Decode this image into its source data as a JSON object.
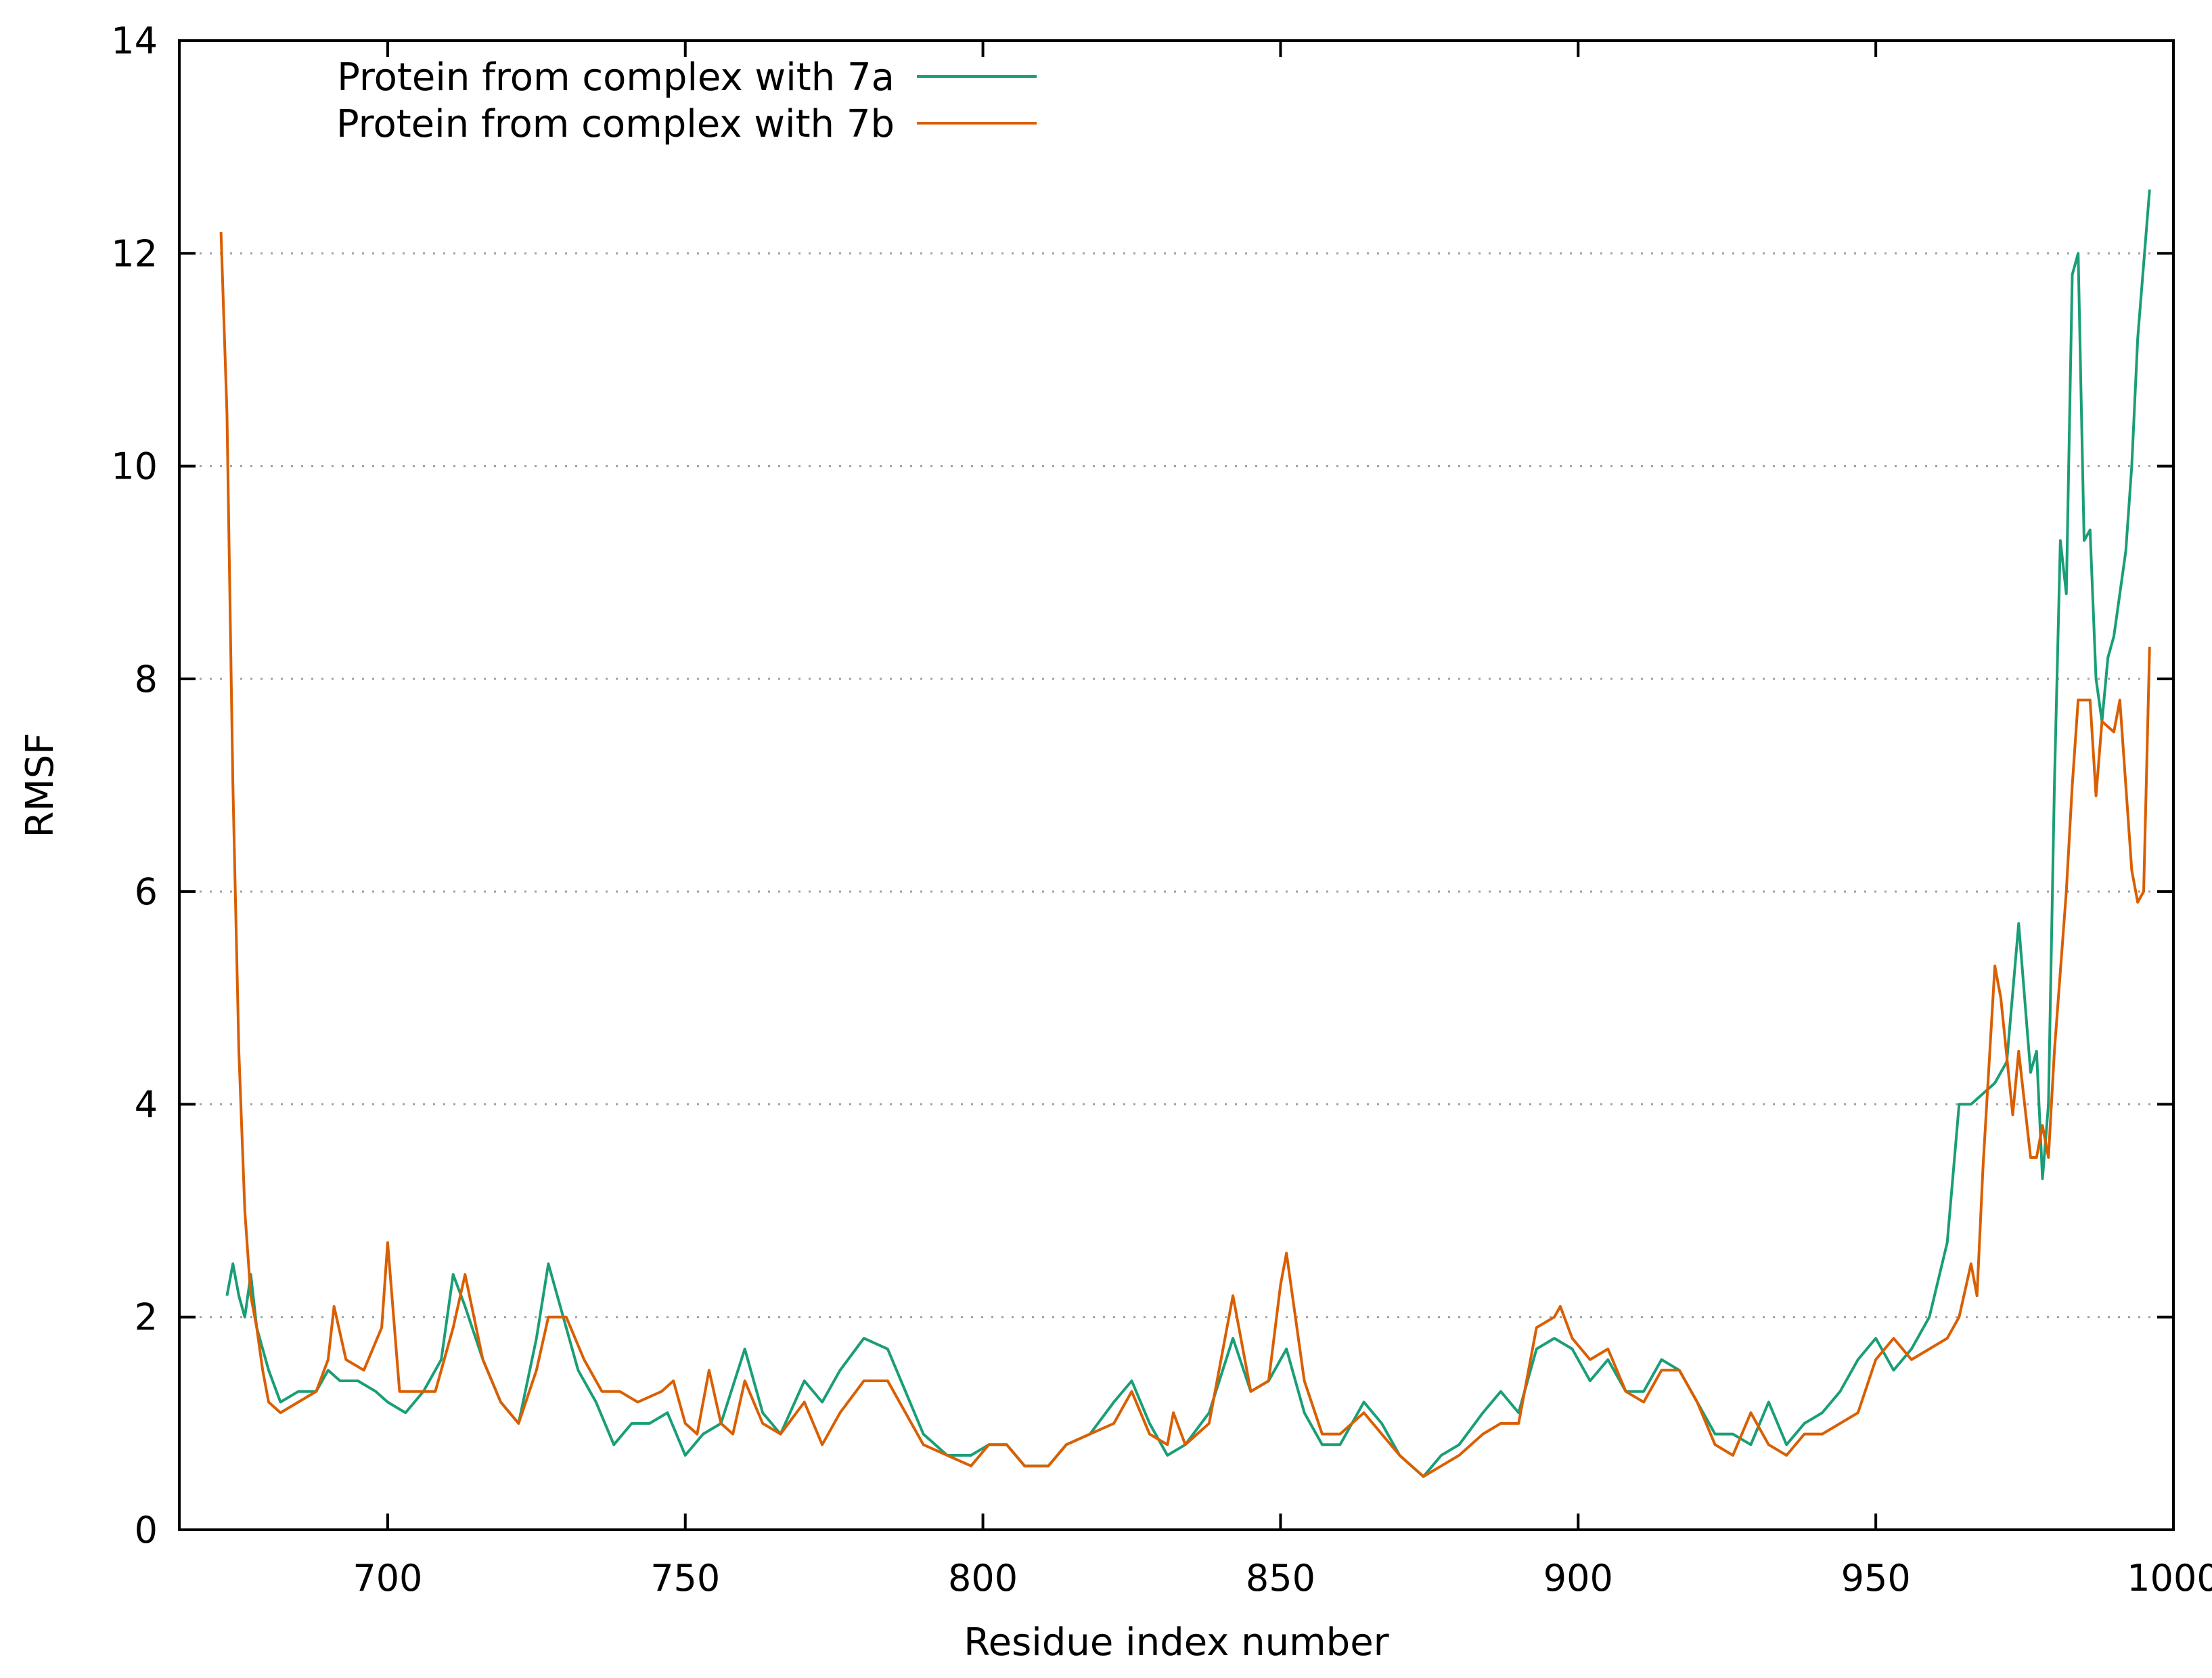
{
  "chart_data": {
    "type": "line",
    "title": "",
    "xlabel": "Residue index number",
    "ylabel": "RMSF",
    "xlim": [
      665,
      1000
    ],
    "ylim": [
      0,
      14
    ],
    "xticks": [
      700,
      750,
      800,
      850,
      900,
      950,
      1000
    ],
    "yticks": [
      0,
      2,
      4,
      6,
      8,
      10,
      12,
      14
    ],
    "grid": "horizontal dotted",
    "legend_position": "top-left",
    "series": [
      {
        "name": "Protein from complex with 7a",
        "color": "#1a9e77",
        "x": [
          673,
          674,
          675,
          676,
          677,
          678,
          680,
          682,
          685,
          688,
          690,
          692,
          695,
          698,
          700,
          703,
          706,
          709,
          711,
          713,
          716,
          719,
          722,
          725,
          727,
          729,
          732,
          735,
          738,
          741,
          744,
          747,
          750,
          753,
          756,
          760,
          763,
          766,
          770,
          773,
          776,
          780,
          784,
          787,
          790,
          794,
          798,
          801,
          804,
          807,
          811,
          814,
          818,
          822,
          825,
          828,
          831,
          834,
          838,
          842,
          845,
          848,
          851,
          854,
          857,
          860,
          864,
          867,
          870,
          874,
          877,
          880,
          884,
          887,
          890,
          893,
          896,
          899,
          902,
          905,
          908,
          911,
          914,
          917,
          920,
          923,
          926,
          929,
          932,
          935,
          938,
          941,
          944,
          947,
          950,
          953,
          956,
          959,
          962,
          964,
          966,
          968,
          970,
          972,
          974,
          976,
          977,
          978,
          979,
          980,
          981,
          982,
          983,
          984,
          985,
          986,
          987,
          988,
          989,
          990,
          991,
          992,
          993,
          994,
          995,
          996
        ],
        "y": [
          2.2,
          2.5,
          2.2,
          2.0,
          2.4,
          1.9,
          1.5,
          1.2,
          1.3,
          1.3,
          1.5,
          1.4,
          1.4,
          1.3,
          1.2,
          1.1,
          1.3,
          1.6,
          2.4,
          2.1,
          1.6,
          1.2,
          1.0,
          1.8,
          2.5,
          2.1,
          1.5,
          1.2,
          0.8,
          1.0,
          1.0,
          1.1,
          0.7,
          0.9,
          1.0,
          1.7,
          1.1,
          0.9,
          1.4,
          1.2,
          1.5,
          1.8,
          1.7,
          1.3,
          0.9,
          0.7,
          0.7,
          0.8,
          0.8,
          0.6,
          0.6,
          0.8,
          0.9,
          1.2,
          1.4,
          1.0,
          0.7,
          0.8,
          1.1,
          1.8,
          1.3,
          1.4,
          1.7,
          1.1,
          0.8,
          0.8,
          1.2,
          1.0,
          0.7,
          0.5,
          0.7,
          0.8,
          1.1,
          1.3,
          1.1,
          1.7,
          1.8,
          1.7,
          1.4,
          1.6,
          1.3,
          1.3,
          1.6,
          1.5,
          1.2,
          0.9,
          0.9,
          0.8,
          1.2,
          0.8,
          1.0,
          1.1,
          1.3,
          1.6,
          1.8,
          1.5,
          1.7,
          2.0,
          2.7,
          4.0,
          4.0,
          4.1,
          4.2,
          4.4,
          5.7,
          4.3,
          4.5,
          3.3,
          4.0,
          7.0,
          9.3,
          8.8,
          11.8,
          12.0,
          9.3,
          9.4,
          8.0,
          7.6,
          8.2,
          8.4,
          8.8,
          9.2,
          10.0,
          11.2,
          11.9,
          12.6
        ]
      },
      {
        "name": "Protein from complex with 7b",
        "color": "#d95f02",
        "x": [
          672,
          673,
          674,
          675,
          676,
          677,
          678,
          679,
          680,
          682,
          685,
          688,
          690,
          691,
          693,
          696,
          699,
          700,
          702,
          705,
          708,
          711,
          713,
          716,
          719,
          722,
          725,
          727,
          730,
          733,
          736,
          739,
          742,
          746,
          748,
          750,
          752,
          754,
          756,
          758,
          760,
          763,
          766,
          770,
          773,
          776,
          780,
          784,
          787,
          790,
          794,
          798,
          801,
          804,
          807,
          811,
          814,
          818,
          822,
          825,
          828,
          831,
          832,
          834,
          838,
          841,
          842,
          845,
          848,
          850,
          851,
          854,
          857,
          860,
          864,
          867,
          870,
          874,
          877,
          880,
          884,
          887,
          890,
          893,
          896,
          897,
          899,
          902,
          905,
          908,
          911,
          914,
          917,
          920,
          923,
          926,
          929,
          932,
          935,
          938,
          941,
          944,
          947,
          950,
          953,
          956,
          959,
          962,
          964,
          966,
          967,
          968,
          970,
          971,
          973,
          974,
          976,
          977,
          978,
          979,
          980,
          982,
          983,
          984,
          986,
          987,
          988,
          990,
          991,
          993,
          994,
          995,
          996
        ],
        "y": [
          12.2,
          10.5,
          7.0,
          4.5,
          3.0,
          2.2,
          1.9,
          1.5,
          1.2,
          1.1,
          1.2,
          1.3,
          1.6,
          2.1,
          1.6,
          1.5,
          1.9,
          2.7,
          1.3,
          1.3,
          1.3,
          1.9,
          2.4,
          1.6,
          1.2,
          1.0,
          1.5,
          2.0,
          2.0,
          1.6,
          1.3,
          1.3,
          1.2,
          1.3,
          1.4,
          1.0,
          0.9,
          1.5,
          1.0,
          0.9,
          1.4,
          1.0,
          0.9,
          1.2,
          0.8,
          1.1,
          1.4,
          1.4,
          1.1,
          0.8,
          0.7,
          0.6,
          0.8,
          0.8,
          0.6,
          0.6,
          0.8,
          0.9,
          1.0,
          1.3,
          0.9,
          0.8,
          1.1,
          0.8,
          1.0,
          1.9,
          2.2,
          1.3,
          1.4,
          2.3,
          2.6,
          1.4,
          0.9,
          0.9,
          1.1,
          0.9,
          0.7,
          0.5,
          0.6,
          0.7,
          0.9,
          1.0,
          1.0,
          1.9,
          2.0,
          2.1,
          1.8,
          1.6,
          1.7,
          1.3,
          1.2,
          1.5,
          1.5,
          1.2,
          0.8,
          0.7,
          1.1,
          0.8,
          0.7,
          0.9,
          0.9,
          1.0,
          1.1,
          1.6,
          1.8,
          1.6,
          1.7,
          1.8,
          2.0,
          2.5,
          2.2,
          3.4,
          5.3,
          5.0,
          3.9,
          4.5,
          3.5,
          3.5,
          3.8,
          3.5,
          4.5,
          6.0,
          7.0,
          7.8,
          7.8,
          6.9,
          7.6,
          7.5,
          7.8,
          6.2,
          5.9,
          6.0,
          8.3
        ]
      }
    ]
  }
}
